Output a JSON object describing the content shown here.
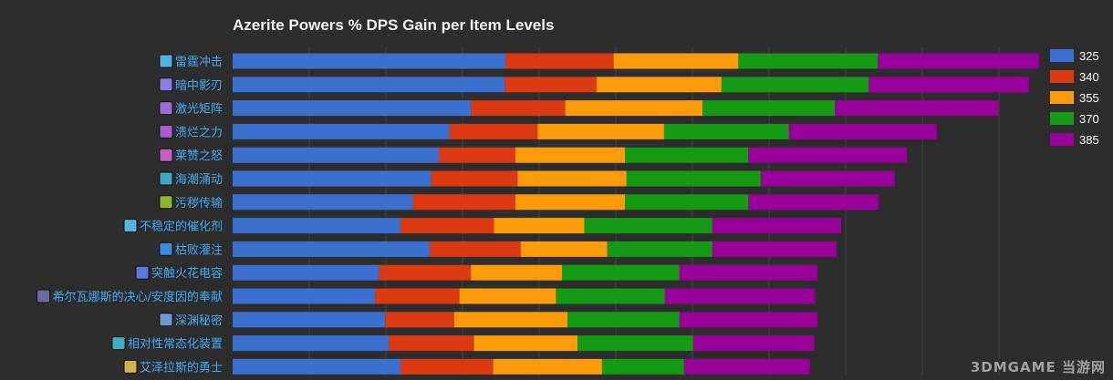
{
  "watermark": "3DMGAME 当游网",
  "chart_data": {
    "type": "bar",
    "orientation": "horizontal",
    "stacked": true,
    "title": "Azerite Powers % DPS Gain per Item Levels",
    "xlabel": "",
    "ylabel": "",
    "grid": true,
    "legend_position": "top-right",
    "colors": [
      "#3b6fd0",
      "#dc3a12",
      "#fd9b0a",
      "#149a14",
      "#990099"
    ],
    "categories": [
      "雷霆冲击",
      "暗中影刃",
      "激光矩阵",
      "溃烂之力",
      "莱赞之怒",
      "海潮涌动",
      "污秽传输",
      "不稳定的催化剂",
      "枯败灌注",
      "突触火花电容",
      "希尔瓦娜斯的决心/安度因的奉献",
      "深渊秘密",
      "相对性常态化装置",
      "艾泽拉斯的勇士"
    ],
    "icon_colors": [
      "#4fb3e6",
      "#8a7fe0",
      "#a06ad6",
      "#b05ad0",
      "#c060c0",
      "#3fa8c8",
      "#8ab830",
      "#5ab0e0",
      "#3a8ae0",
      "#5a7ae0",
      "#6a6aa0",
      "#6a9ad0",
      "#3fb0c0",
      "#d0b050"
    ],
    "series": [
      {
        "name": "325",
        "values": [
          3.56,
          3.55,
          3.11,
          2.83,
          2.69,
          2.59,
          2.35,
          2.19,
          2.57,
          1.91,
          1.86,
          1.99,
          2.04,
          2.19
        ]
      },
      {
        "name": "340",
        "values": [
          1.41,
          1.2,
          1.23,
          1.15,
          1.0,
          1.13,
          1.34,
          1.22,
          1.19,
          1.2,
          1.1,
          0.9,
          1.11,
          1.21
        ]
      },
      {
        "name": "355",
        "values": [
          1.63,
          1.63,
          1.79,
          1.65,
          1.43,
          1.42,
          1.43,
          1.18,
          1.13,
          1.19,
          1.26,
          1.48,
          1.35,
          1.42
        ]
      },
      {
        "name": "370",
        "values": [
          1.82,
          1.92,
          1.73,
          1.63,
          1.61,
          1.75,
          1.61,
          1.67,
          1.37,
          1.53,
          1.42,
          1.46,
          1.51,
          1.07
        ]
      },
      {
        "name": "385",
        "values": [
          2.1,
          2.09,
          2.13,
          1.93,
          2.07,
          1.75,
          1.7,
          1.68,
          1.62,
          1.8,
          1.96,
          1.8,
          1.58,
          1.64
        ]
      }
    ]
  }
}
